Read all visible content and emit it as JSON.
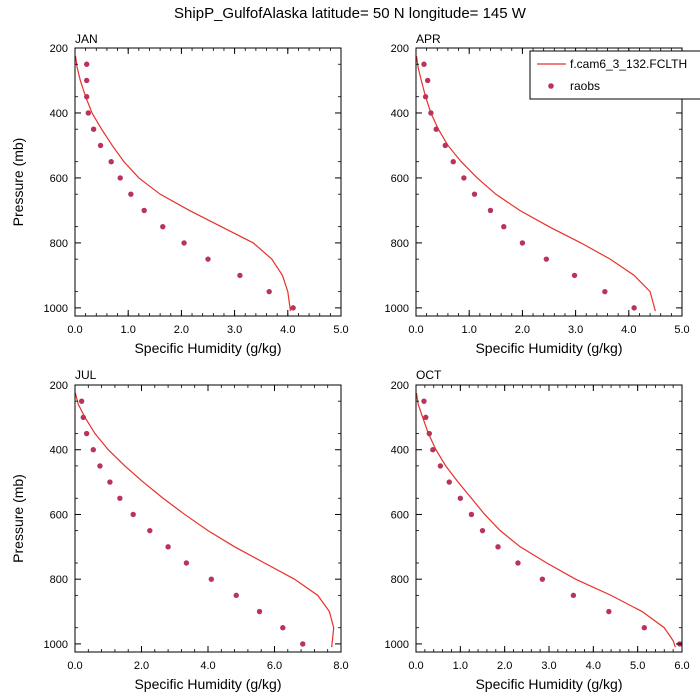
{
  "title": "ShipP_GulfofAlaska  latitude= 50 N longitude= 145 W",
  "legend": {
    "model_label": "f.cam6_3_132.FCLTH",
    "obs_label": "raobs",
    "placement": "top-right",
    "model_color": "#e8302a",
    "obs_color": "#b8345a"
  },
  "chart_data": [
    {
      "type": "line",
      "panel": "JAN",
      "xlabel": "Specific Humidity (g/kg)",
      "ylabel": "Pressure (mb)",
      "xlim": [
        0,
        5
      ],
      "ylim": [
        1025,
        200
      ],
      "xticks": [
        "0.0",
        "1.0",
        "2.0",
        "3.0",
        "4.0",
        "5.0"
      ],
      "yticks": [
        "200",
        "400",
        "600",
        "800",
        "1000"
      ],
      "model": {
        "x": [
          0.01,
          0.04,
          0.1,
          0.2,
          0.32,
          0.5,
          0.7,
          0.92,
          1.2,
          1.6,
          2.15,
          2.75,
          3.35,
          3.7,
          3.9,
          4.0,
          4.05
        ],
        "y": [
          225,
          260,
          300,
          350,
          400,
          450,
          500,
          550,
          600,
          650,
          700,
          750,
          800,
          850,
          900,
          950,
          1010
        ]
      },
      "raobs": {
        "x": [
          0.22,
          0.22,
          0.22,
          0.25,
          0.35,
          0.48,
          0.68,
          0.85,
          1.05,
          1.3,
          1.65,
          2.05,
          2.5,
          3.1,
          3.65,
          4.1
        ],
        "y": [
          250,
          300,
          350,
          400,
          450,
          500,
          550,
          600,
          650,
          700,
          750,
          800,
          850,
          900,
          950,
          1000
        ]
      }
    },
    {
      "type": "line",
      "panel": "APR",
      "xlabel": "Specific Humidity (g/kg)",
      "ylabel": "",
      "xlim": [
        0,
        5
      ],
      "ylim": [
        1025,
        200
      ],
      "xticks": [
        "0.0",
        "1.0",
        "2.0",
        "3.0",
        "4.0",
        "5.0"
      ],
      "yticks": [
        "200",
        "400",
        "600",
        "800",
        "1000"
      ],
      "model": {
        "x": [
          0.01,
          0.04,
          0.1,
          0.18,
          0.28,
          0.42,
          0.6,
          0.85,
          1.15,
          1.5,
          1.95,
          2.5,
          3.1,
          3.65,
          4.1,
          4.4,
          4.5
        ],
        "y": [
          225,
          260,
          300,
          350,
          400,
          450,
          500,
          550,
          600,
          650,
          700,
          750,
          800,
          850,
          900,
          950,
          1010
        ]
      },
      "raobs": {
        "x": [
          0.15,
          0.22,
          0.18,
          0.28,
          0.38,
          0.55,
          0.7,
          0.9,
          1.1,
          1.4,
          1.65,
          2.0,
          2.45,
          2.98,
          3.55,
          4.1
        ],
        "y": [
          250,
          300,
          350,
          400,
          450,
          500,
          550,
          600,
          650,
          700,
          750,
          800,
          850,
          900,
          950,
          1000
        ]
      }
    },
    {
      "type": "line",
      "panel": "JUL",
      "xlabel": "Specific Humidity (g/kg)",
      "ylabel": "Pressure (mb)",
      "xlim": [
        0,
        8
      ],
      "ylim": [
        1025,
        200
      ],
      "xticks": [
        "0.0",
        "2.0",
        "4.0",
        "6.0",
        "8.0"
      ],
      "yticks": [
        "200",
        "400",
        "600",
        "800",
        "1000"
      ],
      "model": {
        "x": [
          0.01,
          0.1,
          0.3,
          0.6,
          1.0,
          1.5,
          2.05,
          2.65,
          3.3,
          4.0,
          4.8,
          5.7,
          6.6,
          7.3,
          7.65,
          7.78,
          7.72
        ],
        "y": [
          225,
          260,
          300,
          350,
          400,
          450,
          500,
          550,
          600,
          650,
          700,
          750,
          800,
          850,
          900,
          950,
          1010
        ]
      },
      "raobs": {
        "x": [
          0.2,
          0.25,
          0.35,
          0.55,
          0.75,
          1.05,
          1.35,
          1.75,
          2.25,
          2.8,
          3.35,
          4.1,
          4.85,
          5.55,
          6.25,
          6.85
        ],
        "y": [
          250,
          300,
          350,
          400,
          450,
          500,
          550,
          600,
          650,
          700,
          750,
          800,
          850,
          900,
          950,
          1000
        ]
      }
    },
    {
      "type": "line",
      "panel": "OCT",
      "xlabel": "Specific Humidity (g/kg)",
      "ylabel": "",
      "xlim": [
        0,
        6
      ],
      "ylim": [
        1025,
        200
      ],
      "xticks": [
        "0.0",
        "1.0",
        "2.0",
        "3.0",
        "4.0",
        "5.0",
        "6.0"
      ],
      "yticks": [
        "200",
        "400",
        "600",
        "800",
        "1000"
      ],
      "model": {
        "x": [
          0.01,
          0.05,
          0.15,
          0.28,
          0.45,
          0.67,
          0.95,
          1.25,
          1.55,
          1.9,
          2.35,
          2.95,
          3.6,
          4.4,
          5.1,
          5.6,
          5.8,
          5.85
        ],
        "y": [
          225,
          260,
          300,
          350,
          400,
          450,
          500,
          550,
          600,
          650,
          700,
          750,
          800,
          850,
          900,
          950,
          990,
          1010
        ]
      },
      "raobs": {
        "x": [
          0.18,
          0.22,
          0.3,
          0.38,
          0.55,
          0.75,
          1.0,
          1.25,
          1.5,
          1.85,
          2.3,
          2.85,
          3.55,
          4.35,
          5.15,
          5.95
        ],
        "y": [
          250,
          300,
          350,
          400,
          450,
          500,
          550,
          600,
          650,
          700,
          750,
          800,
          850,
          900,
          950,
          1000
        ]
      }
    }
  ]
}
